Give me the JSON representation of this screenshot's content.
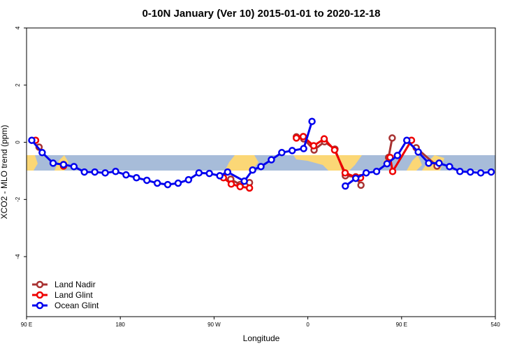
{
  "chart_data": {
    "type": "line",
    "title": "0-10N January (Ver 10)   2015-01-01 to 2020-12-18",
    "x_label": "Longitude",
    "y_label": "XCO2 - MLO trend (ppm)",
    "xlim": [
      90,
      540
    ],
    "xticks": [
      {
        "value": 90,
        "label": "90 E"
      },
      180,
      {
        "value": 270,
        "label": "90 W"
      },
      {
        "value": 360,
        "label": "0"
      },
      {
        "value": 450,
        "label": "90 E"
      },
      540
    ],
    "ylim": [
      -6.1,
      4
    ],
    "yticks": [
      4,
      2,
      0,
      -2,
      -4
    ],
    "legend": "bottom-left",
    "series": [
      {
        "name": "Land Nadir",
        "color": "#a83232",
        "x": [
          102,
          null,
          125.5,
          null,
          286,
          295,
          304,
          null,
          349,
          356,
          366,
          376,
          386,
          396,
          406,
          411,
          null,
          437.5,
          441,
          null,
          464,
          484
        ],
        "values": [
          -0.17,
          null,
          -0.78,
          null,
          -1.29,
          -1.48,
          -1.41,
          null,
          0.19,
          0.12,
          -0.27,
          0.02,
          -0.24,
          -1.17,
          -1.21,
          -1.5,
          null,
          -0.53,
          0.15,
          null,
          -0.19,
          -0.83
        ]
      },
      {
        "name": "Land Glint",
        "color": "#ee0000",
        "x": [
          98.7,
          null,
          125.5,
          null,
          279,
          286.5,
          295,
          304,
          null,
          349,
          355.6,
          365.6,
          375.7,
          385.7,
          395.8,
          406,
          410.6,
          null,
          439,
          441.4,
          459.5
        ],
        "values": [
          0.07,
          null,
          -0.83,
          null,
          -1.24,
          -1.46,
          -1.55,
          -1.6,
          null,
          0.15,
          0.2,
          -0.12,
          0.12,
          -0.27,
          -1.07,
          -1.22,
          -1.24,
          null,
          -0.53,
          -1.02,
          0.07
        ]
      },
      {
        "name": "Ocean Glint",
        "color": "#0000ee",
        "x": [
          95,
          105,
          115.5,
          125.5,
          135.5,
          145.5,
          155.5,
          165.5,
          175.5,
          185.5,
          195.5,
          205.5,
          215.5,
          225.5,
          235.5,
          245.5,
          255.5,
          265.5,
          275.5,
          283,
          299,
          307,
          315,
          325,
          335,
          345,
          356,
          364,
          null,
          396,
          406,
          416,
          426,
          436,
          446,
          455,
          466,
          476,
          486,
          496,
          506,
          516,
          526,
          536
        ],
        "values": [
          0.07,
          -0.36,
          -0.73,
          -0.78,
          -0.85,
          -1.04,
          -1.04,
          -1.07,
          -1.02,
          -1.14,
          -1.24,
          -1.33,
          -1.43,
          -1.48,
          -1.43,
          -1.31,
          -1.07,
          -1.09,
          -1.17,
          -1.04,
          -1.36,
          -0.97,
          -0.85,
          -0.61,
          -0.36,
          -0.29,
          -0.22,
          0.73,
          null,
          -1.53,
          -1.26,
          -1.07,
          -1.02,
          -0.75,
          -0.46,
          0.07,
          -0.34,
          -0.73,
          -0.73,
          -0.85,
          -1.02,
          -1.04,
          -1.07,
          -1.04
        ]
      }
    ]
  }
}
